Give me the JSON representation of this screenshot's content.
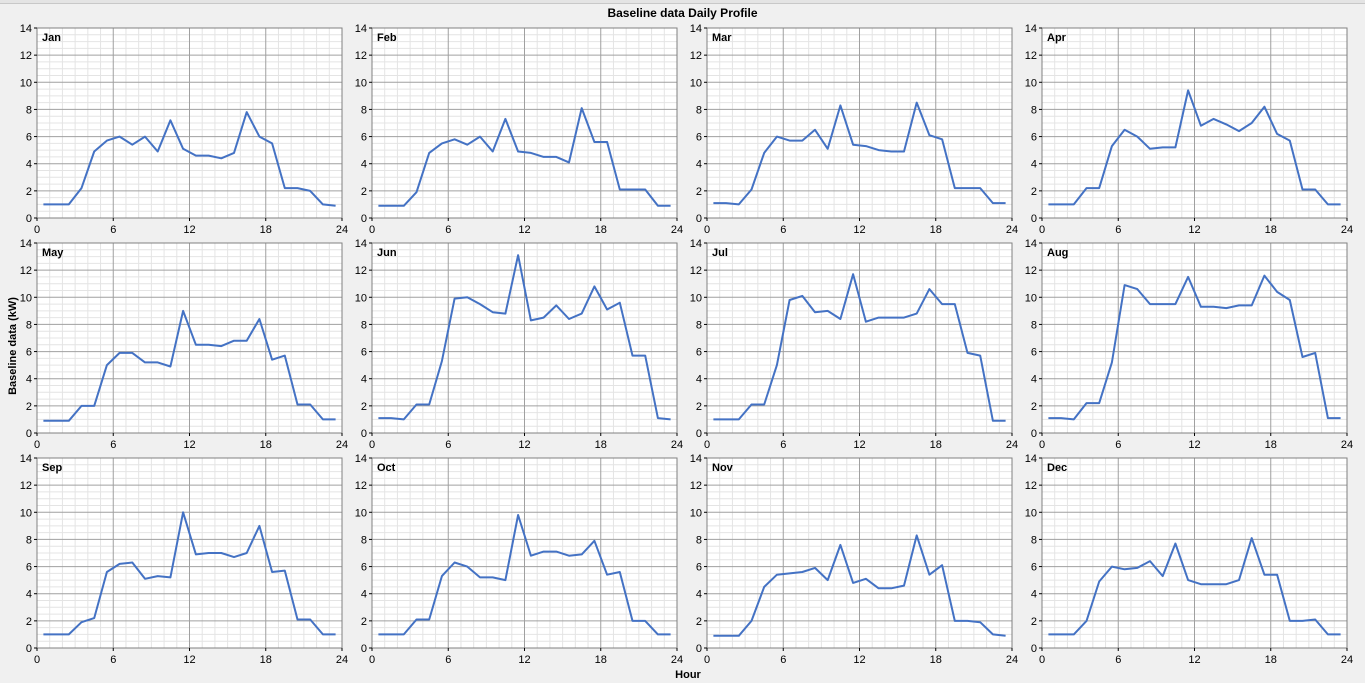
{
  "title": "Baseline data Daily Profile",
  "colors": {
    "series": "#4472c4",
    "panel_bg": "#ffffff",
    "major_grid": "#a0a0a0",
    "minor_grid": "#e4e4e4"
  },
  "chart_data": {
    "type": "line",
    "title": "Baseline data Daily Profile",
    "xlabel": "Hour",
    "ylabel": "Baseline data (kW)",
    "xlim": [
      0,
      24
    ],
    "ylim": [
      0,
      14
    ],
    "x_ticks": [
      0,
      6,
      12,
      18,
      24
    ],
    "y_ticks": [
      0,
      2,
      4,
      6,
      8,
      10,
      12,
      14
    ],
    "grid": true,
    "x": [
      0.5,
      1.5,
      2.5,
      3.5,
      4.5,
      5.5,
      6.5,
      7.5,
      8.5,
      9.5,
      10.5,
      11.5,
      12.5,
      13.5,
      14.5,
      15.5,
      16.5,
      17.5,
      18.5,
      19.5,
      20.5,
      21.5,
      22.5,
      23.5
    ],
    "panels": [
      {
        "name": "Jan",
        "values": [
          1.0,
          1.0,
          1.0,
          2.2,
          4.9,
          5.7,
          6.0,
          5.4,
          6.0,
          4.9,
          7.2,
          5.1,
          4.6,
          4.6,
          4.4,
          4.8,
          7.8,
          6.0,
          5.5,
          2.2,
          2.2,
          2.0,
          1.0,
          0.9
        ]
      },
      {
        "name": "Feb",
        "values": [
          0.9,
          0.9,
          0.9,
          1.9,
          4.8,
          5.5,
          5.8,
          5.4,
          6.0,
          4.9,
          7.3,
          4.9,
          4.8,
          4.5,
          4.5,
          4.1,
          8.1,
          5.6,
          5.6,
          2.1,
          2.1,
          2.1,
          0.9,
          0.9
        ]
      },
      {
        "name": "Mar",
        "values": [
          1.1,
          1.1,
          1.0,
          2.1,
          4.8,
          6.0,
          5.7,
          5.7,
          6.5,
          5.1,
          8.3,
          5.4,
          5.3,
          5.0,
          4.9,
          4.9,
          8.5,
          6.1,
          5.8,
          2.2,
          2.2,
          2.2,
          1.1,
          1.1
        ]
      },
      {
        "name": "Apr",
        "values": [
          1.0,
          1.0,
          1.0,
          2.2,
          2.2,
          5.3,
          6.5,
          6.0,
          5.1,
          5.2,
          5.2,
          9.4,
          6.8,
          7.3,
          6.9,
          6.4,
          7.0,
          8.2,
          6.2,
          5.7,
          2.1,
          2.1,
          1.0,
          1.0
        ]
      },
      {
        "name": "May",
        "values": [
          0.9,
          0.9,
          0.9,
          2.0,
          2.0,
          5.0,
          5.9,
          5.9,
          5.2,
          5.2,
          4.9,
          9.0,
          6.5,
          6.5,
          6.4,
          6.8,
          6.8,
          8.4,
          5.4,
          5.7,
          2.1,
          2.1,
          1.0,
          1.0
        ]
      },
      {
        "name": "Jun",
        "values": [
          1.1,
          1.1,
          1.0,
          2.1,
          2.1,
          5.3,
          9.9,
          10.0,
          9.5,
          8.9,
          8.8,
          13.1,
          8.3,
          8.5,
          9.4,
          8.4,
          8.8,
          10.8,
          9.1,
          9.6,
          5.7,
          5.7,
          1.1,
          1.0
        ]
      },
      {
        "name": "Jul",
        "values": [
          1.0,
          1.0,
          1.0,
          2.1,
          2.1,
          5.0,
          9.8,
          10.1,
          8.9,
          9.0,
          8.4,
          11.7,
          8.2,
          8.5,
          8.5,
          8.5,
          8.8,
          10.6,
          9.5,
          9.5,
          5.9,
          5.7,
          0.9,
          0.9
        ]
      },
      {
        "name": "Aug",
        "values": [
          1.1,
          1.1,
          1.0,
          2.2,
          2.2,
          5.2,
          10.9,
          10.6,
          9.5,
          9.5,
          9.5,
          11.5,
          9.3,
          9.3,
          9.2,
          9.4,
          9.4,
          11.6,
          10.4,
          9.8,
          5.6,
          5.9,
          1.1,
          1.1
        ]
      },
      {
        "name": "Sep",
        "values": [
          1.0,
          1.0,
          1.0,
          1.9,
          2.2,
          5.6,
          6.2,
          6.3,
          5.1,
          5.3,
          5.2,
          10.0,
          6.9,
          7.0,
          7.0,
          6.7,
          7.0,
          9.0,
          5.6,
          5.7,
          2.1,
          2.1,
          1.0,
          1.0
        ]
      },
      {
        "name": "Oct",
        "values": [
          1.0,
          1.0,
          1.0,
          2.1,
          2.1,
          5.3,
          6.3,
          6.0,
          5.2,
          5.2,
          5.0,
          9.8,
          6.8,
          7.1,
          7.1,
          6.8,
          6.9,
          7.9,
          5.4,
          5.6,
          2.0,
          2.0,
          1.0,
          1.0
        ]
      },
      {
        "name": "Nov",
        "values": [
          0.9,
          0.9,
          0.9,
          2.0,
          4.5,
          5.4,
          5.5,
          5.6,
          5.9,
          5.0,
          7.6,
          4.8,
          5.1,
          4.4,
          4.4,
          4.6,
          8.3,
          5.4,
          6.1,
          2.0,
          2.0,
          1.9,
          1.0,
          0.9
        ]
      },
      {
        "name": "Dec",
        "values": [
          1.0,
          1.0,
          1.0,
          2.0,
          4.9,
          6.0,
          5.8,
          5.9,
          6.4,
          5.3,
          7.7,
          5.0,
          4.7,
          4.7,
          4.7,
          5.0,
          8.1,
          5.4,
          5.4,
          2.0,
          2.0,
          2.1,
          1.0,
          1.0
        ]
      }
    ]
  }
}
